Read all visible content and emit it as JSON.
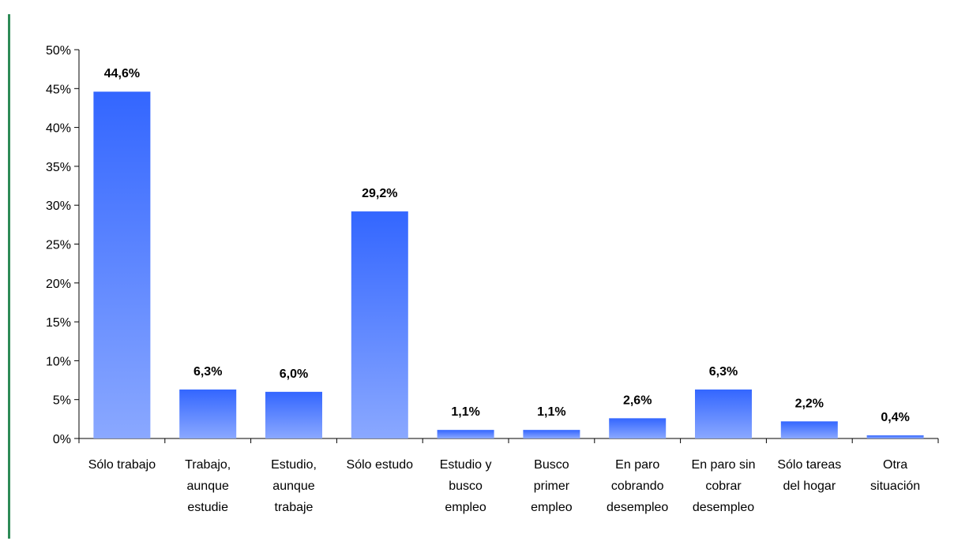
{
  "chart_data": {
    "type": "bar",
    "title": "",
    "xlabel": "",
    "ylabel": "",
    "ylim": [
      0,
      50
    ],
    "y_ticks": [
      "0%",
      "5%",
      "10%",
      "15%",
      "20%",
      "25%",
      "30%",
      "35%",
      "40%",
      "45%",
      "50%"
    ],
    "y_tick_values": [
      0,
      5,
      10,
      15,
      20,
      25,
      30,
      35,
      40,
      45,
      50
    ],
    "categories": [
      [
        "Sólo trabajo"
      ],
      [
        "Trabajo,",
        "aunque",
        "estudie"
      ],
      [
        "Estudio,",
        "aunque",
        "trabaje"
      ],
      [
        "Sólo estudo"
      ],
      [
        "Estudio y",
        "busco",
        "empleo"
      ],
      [
        "Busco",
        "primer",
        "empleo"
      ],
      [
        "En paro",
        "cobrando",
        "desempleo"
      ],
      [
        "En paro sin",
        "cobrar",
        "desempleo"
      ],
      [
        "Sólo tareas",
        "del hogar"
      ],
      [
        "Otra",
        "situación"
      ]
    ],
    "values": [
      44.6,
      6.3,
      6.0,
      29.2,
      1.1,
      1.1,
      2.6,
      6.3,
      2.2,
      0.4
    ],
    "data_labels": [
      "44,6%",
      "6,3%",
      "6,0%",
      "29,2%",
      "1,1%",
      "1,1%",
      "2,6%",
      "6,3%",
      "2,2%",
      "0,4%"
    ],
    "grid": false,
    "legend": "none",
    "colors": {
      "bar_top": "#3366ff",
      "bar_bottom": "#8aa8ff",
      "axis": "#000000",
      "frame_line": "#2e8b57"
    }
  }
}
